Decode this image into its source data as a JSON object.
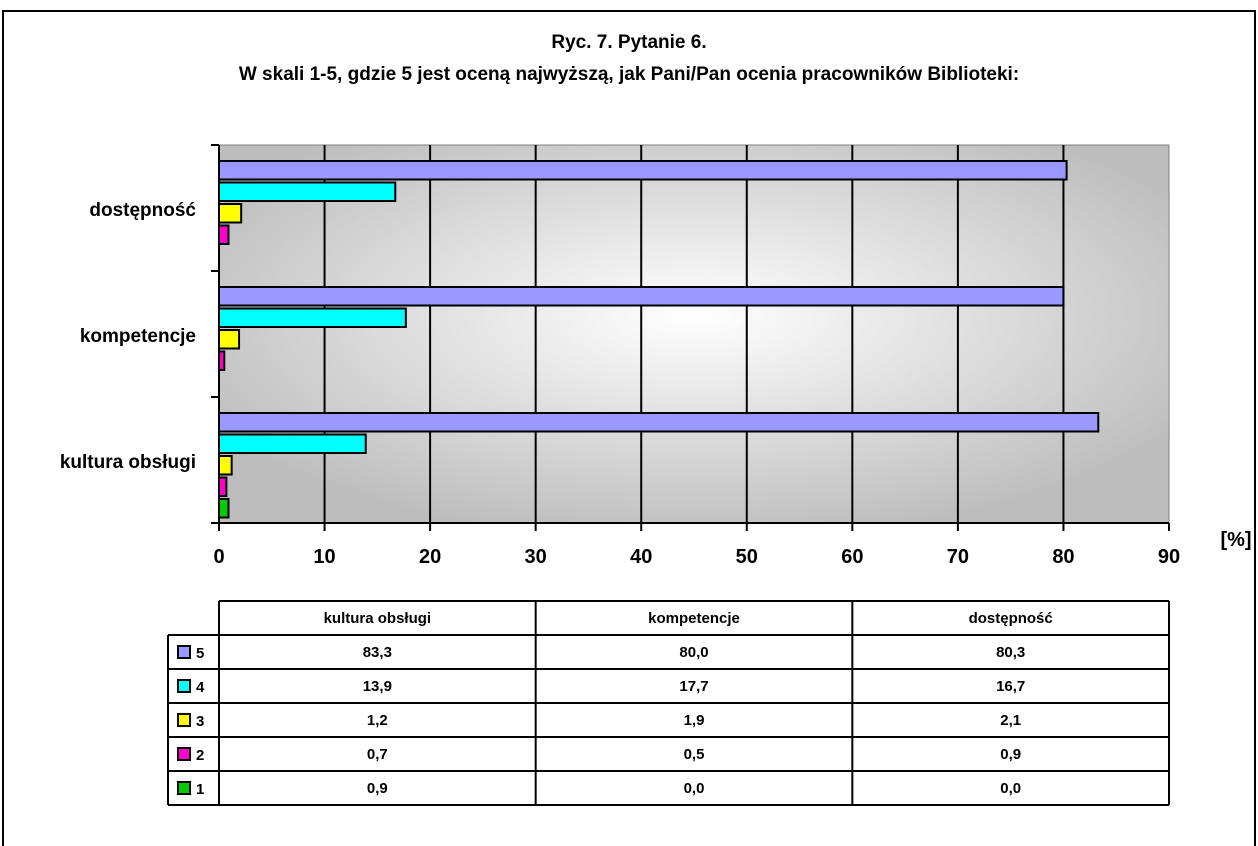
{
  "chart_data": {
    "type": "bar",
    "orientation": "horizontal",
    "title_line1": "Ryc. 7. Pytanie 6.",
    "title_line2": "W skali 1-5, gdzie 5 jest oceną najwyższą, jak Pani/Pan ocenia pracowników Biblioteki:",
    "xlabel": "[%]",
    "xlim": [
      0,
      90
    ],
    "xticks": [
      "0",
      "10",
      "20",
      "30",
      "40",
      "50",
      "60",
      "70",
      "80",
      "90"
    ],
    "categories": [
      "kultura obsługi",
      "kompetencje",
      "dostępność"
    ],
    "series": [
      {
        "name": "5",
        "color": "#9999FF",
        "values": [
          83.3,
          80.0,
          80.3
        ],
        "labels": [
          "83,3",
          "80,0",
          "80,3"
        ]
      },
      {
        "name": "4",
        "color": "#00FFFF",
        "values": [
          13.9,
          17.7,
          16.7
        ],
        "labels": [
          "13,9",
          "17,7",
          "16,7"
        ]
      },
      {
        "name": "3",
        "color": "#FFFF00",
        "values": [
          1.2,
          1.9,
          2.1
        ],
        "labels": [
          "1,2",
          "1,9",
          "2,1"
        ]
      },
      {
        "name": "2",
        "color": "#FF00CC",
        "values": [
          0.7,
          0.5,
          0.9
        ],
        "labels": [
          "0,7",
          "0,5",
          "0,9"
        ]
      },
      {
        "name": "1",
        "color": "#00CC00",
        "values": [
          0.9,
          0.0,
          0.0
        ],
        "labels": [
          "0,9",
          "0,0",
          "0,0"
        ]
      }
    ],
    "grid": true,
    "legend_placement": "data-table-below"
  }
}
